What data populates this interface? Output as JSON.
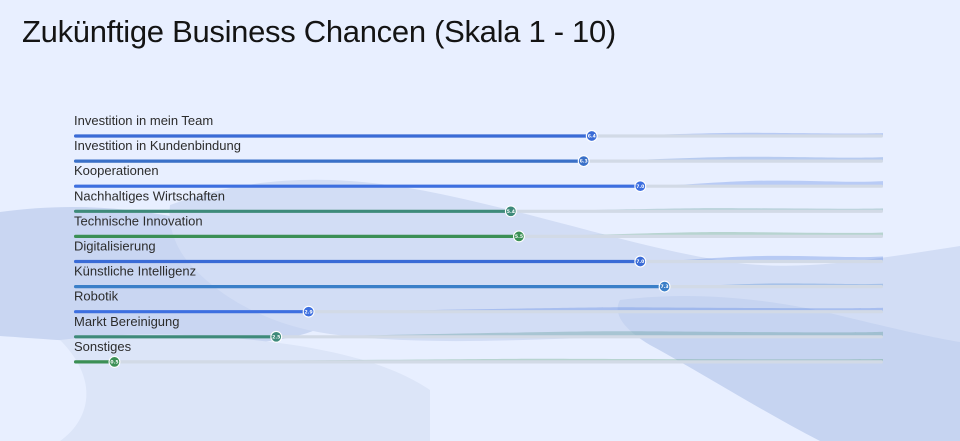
{
  "page": {
    "title": "Zukünftige Business Chancen (Skala 1 - 10)"
  },
  "colors": {
    "background": "#e8efff",
    "blue": "#3b6fd4",
    "steel": "#3e82b6",
    "teal": "#3f8d8a",
    "green": "#3a8f5c",
    "track": "#d2dae6"
  },
  "chart_data": {
    "type": "bar",
    "title": "Zukünftige Business Chancen (Skala 1 - 10)",
    "xlim": [
      0,
      10
    ],
    "categories": [
      "Investition in mein Team",
      "Investition in Kundenbindung",
      "Kooperationen",
      "Nachhaltiges Wirtschaften",
      "Technische Innovation",
      "Digitalisierung",
      "Künstliche Intelligenz",
      "Robotik",
      "Markt Bereinigung",
      "Sonstiges"
    ],
    "values": [
      6.4,
      6.3,
      7.0,
      5.4,
      5.5,
      7.0,
      7.3,
      2.9,
      2.5,
      0.5
    ],
    "value_labels": [
      "6.4",
      "6.3",
      "7.0",
      "5.4",
      "5.5",
      "7.0",
      "7.3",
      "2.9",
      "2.5",
      "0.5"
    ],
    "bar_colors": [
      "#3a6bd6",
      "#3a70c8",
      "#3d6fe0",
      "#3e8a7a",
      "#3b8f55",
      "#3a6bd6",
      "#3a7fc8",
      "#3d6fe0",
      "#3e8a7a",
      "#3b8f55"
    ]
  }
}
